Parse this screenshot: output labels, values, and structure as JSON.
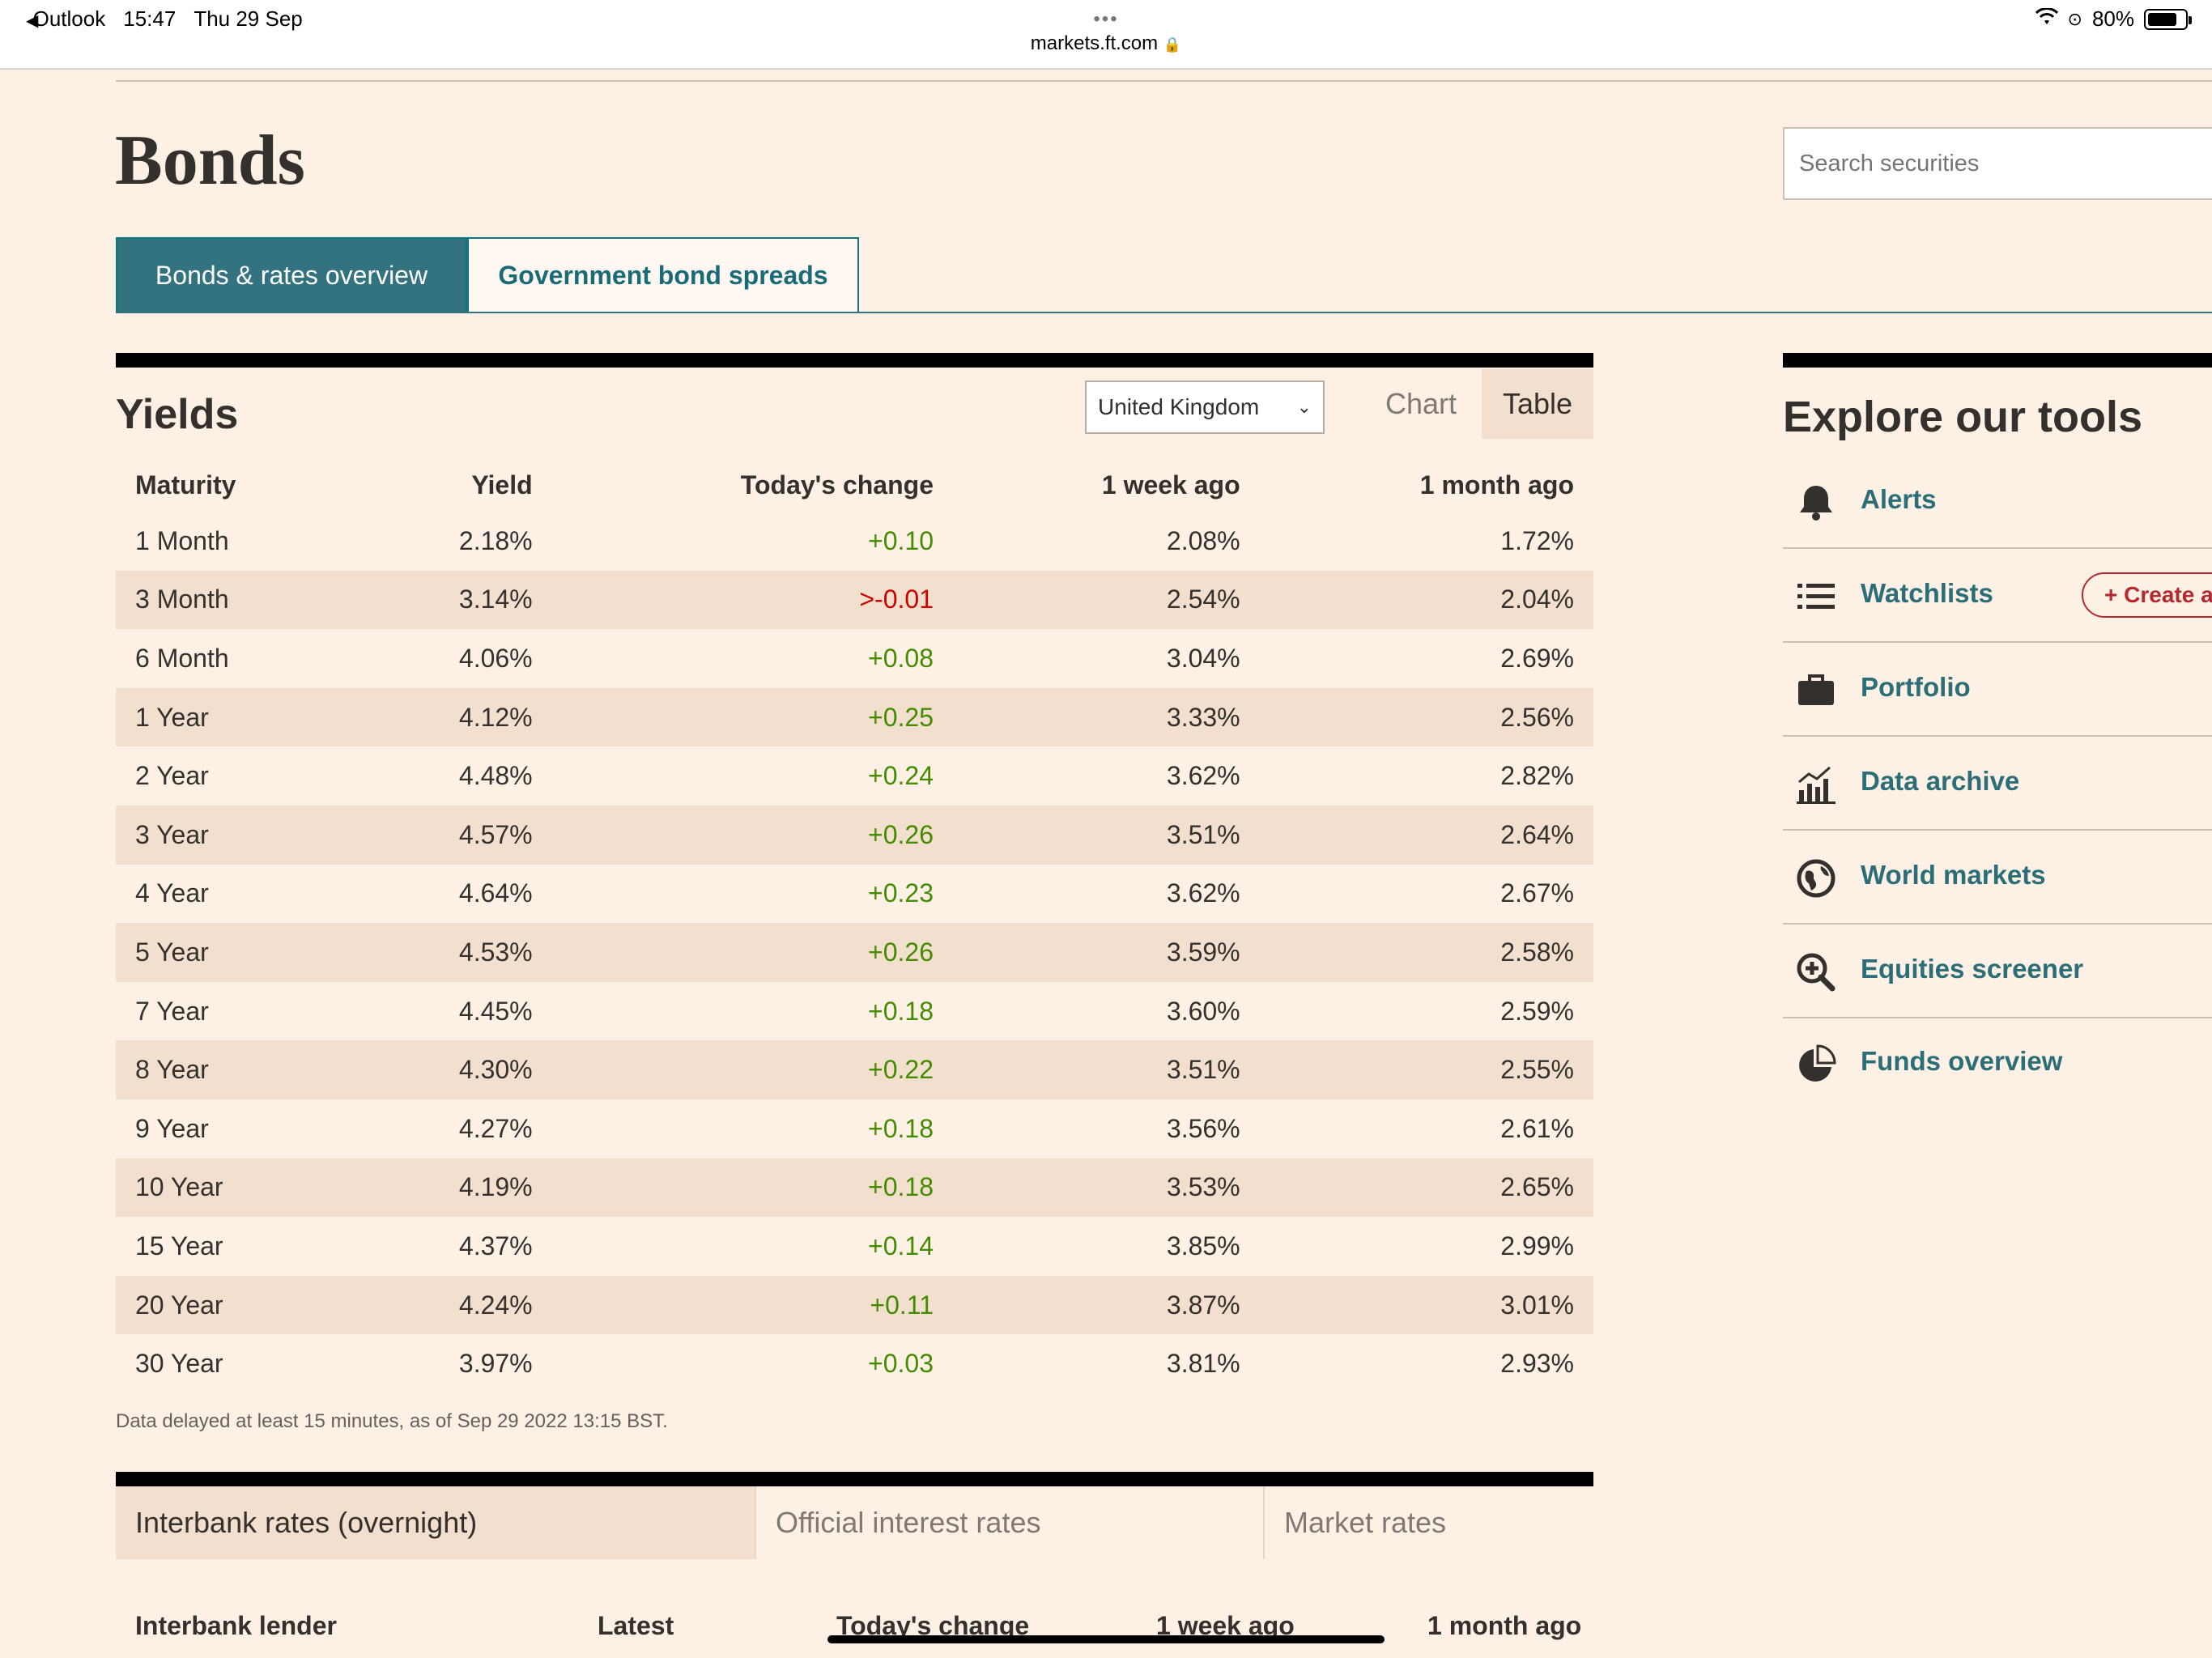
{
  "status_bar": {
    "back_app": "Outlook",
    "time": "15:47",
    "date": "Thu 29 Sep",
    "url": "markets.ft.com",
    "battery": "80%"
  },
  "page": {
    "title": "Bonds",
    "search_placeholder": "Search securities"
  },
  "tabs": [
    {
      "label": "Bonds & rates overview",
      "active": true
    },
    {
      "label": "Government bond spreads",
      "active": false
    }
  ],
  "yields": {
    "title": "Yields",
    "country": "United Kingdom",
    "view_chart": "Chart",
    "view_table": "Table",
    "headers": [
      "Maturity",
      "Yield",
      "Today's change",
      "1 week ago",
      "1 month ago"
    ],
    "rows": [
      [
        "1 Month",
        "2.18%",
        "+0.10",
        "2.08%",
        "1.72%"
      ],
      [
        "3 Month",
        "3.14%",
        ">-0.01",
        "2.54%",
        "2.04%"
      ],
      [
        "6 Month",
        "4.06%",
        "+0.08",
        "3.04%",
        "2.69%"
      ],
      [
        "1 Year",
        "4.12%",
        "+0.25",
        "3.33%",
        "2.56%"
      ],
      [
        "2 Year",
        "4.48%",
        "+0.24",
        "3.62%",
        "2.82%"
      ],
      [
        "3 Year",
        "4.57%",
        "+0.26",
        "3.51%",
        "2.64%"
      ],
      [
        "4 Year",
        "4.64%",
        "+0.23",
        "3.62%",
        "2.67%"
      ],
      [
        "5 Year",
        "4.53%",
        "+0.26",
        "3.59%",
        "2.58%"
      ],
      [
        "7 Year",
        "4.45%",
        "+0.18",
        "3.60%",
        "2.59%"
      ],
      [
        "8 Year",
        "4.30%",
        "+0.22",
        "3.51%",
        "2.55%"
      ],
      [
        "9 Year",
        "4.27%",
        "+0.18",
        "3.56%",
        "2.61%"
      ],
      [
        "10 Year",
        "4.19%",
        "+0.18",
        "3.53%",
        "2.65%"
      ],
      [
        "15 Year",
        "4.37%",
        "+0.14",
        "3.85%",
        "2.99%"
      ],
      [
        "20 Year",
        "4.24%",
        "+0.11",
        "3.87%",
        "3.01%"
      ],
      [
        "30 Year",
        "3.97%",
        "+0.03",
        "3.81%",
        "2.93%"
      ]
    ],
    "note": "Data delayed at least 15 minutes, as of Sep 29 2022 13:15 BST."
  },
  "rates": {
    "tabs": [
      "Interbank rates (overnight)",
      "Official interest rates",
      "Market rates"
    ],
    "headers": [
      "Interbank lender",
      "Latest",
      "Today's change",
      "1 week ago",
      "1 month ago"
    ]
  },
  "tools": {
    "title": "Explore our tools",
    "create_label": "+ Create a",
    "items": [
      {
        "label": "Alerts",
        "icon": "bell-icon"
      },
      {
        "label": "Watchlists",
        "icon": "list-icon"
      },
      {
        "label": "Portfolio",
        "icon": "briefcase-icon"
      },
      {
        "label": "Data archive",
        "icon": "chart-archive-icon"
      },
      {
        "label": "World markets",
        "icon": "globe-icon"
      },
      {
        "label": "Equities screener",
        "icon": "magnifier-plus-icon"
      },
      {
        "label": "Funds overview",
        "icon": "pie-chart-icon"
      }
    ]
  },
  "colors": {
    "page_bg": "#fdf1e6",
    "teal": "#33737f",
    "positive": "#458b00",
    "negative": "#cc0000",
    "alt_row": "#f2dfce"
  }
}
